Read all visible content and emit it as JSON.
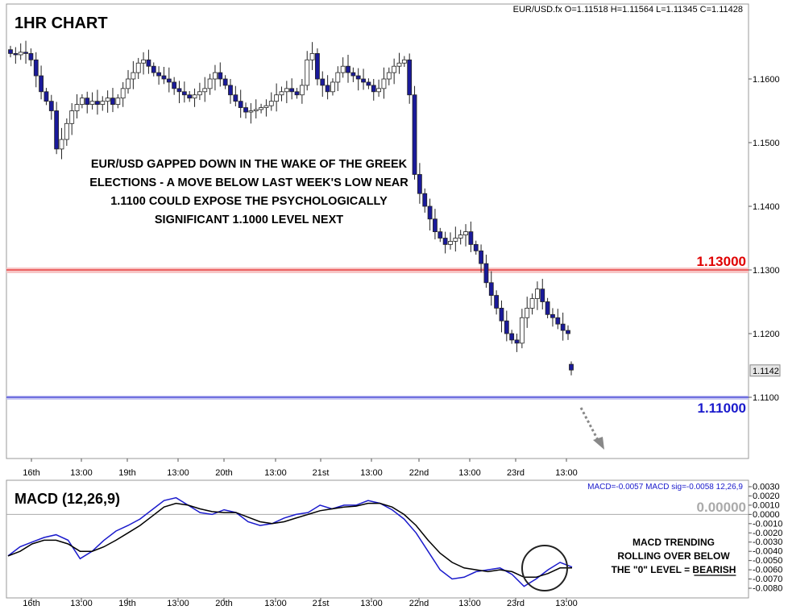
{
  "main": {
    "title": "1HR CHART",
    "ohlc": "EUR/USD.fx O=1.11518 H=1.11564 L=1.11345 C=1.11428",
    "annotation": [
      "EUR/USD GAPPED DOWN IN THE WAKE OF THE GREEK",
      "ELECTIONS - A MOVE BELOW LAST WEEK'S LOW NEAR",
      "1.1100 COULD EXPOSE THE PSYCHOLOGICALLY",
      "SIGNIFICANT 1.1000 LEVEL NEXT"
    ],
    "resistance_label": "1.13000",
    "support_label": "1.11000",
    "last_price_label": "1.1142",
    "colors": {
      "resistance": "#e00000",
      "support": "#1a1acc",
      "bear_candle": "#1a1a9a",
      "bull_candle": "#ffffff"
    }
  },
  "macd": {
    "title": "MACD (12,26,9)",
    "values_line": "MACD=-0.0057 MACD sig=-0.0058  12,26,9",
    "zero_label": "0.00000",
    "annotation": [
      "MACD TRENDING",
      "ROLLING OVER BELOW",
      "THE \"0\" LEVEL = BEARISH"
    ],
    "colors": {
      "macd": "#1a1acc",
      "signal": "#000000"
    }
  },
  "x_axis": {
    "labels": [
      "16th",
      "13:00",
      "19th",
      "13:00",
      "20th",
      "13:00",
      "21st",
      "13:00",
      "22nd",
      "13:00",
      "23rd",
      "13:00"
    ]
  },
  "chart_data": [
    {
      "type": "candlestick",
      "title": "1HR CHART",
      "series_name": "EUR/USD.fx",
      "ylim": [
        1.1,
        1.172
      ],
      "y_ticks": [
        "1.1600",
        "1.1500",
        "1.1400",
        "1.1300",
        "1.1200",
        "1.1100"
      ],
      "horizontal_lines": [
        {
          "value": 1.13,
          "label": "1.13000",
          "color": "#e00000"
        },
        {
          "value": 1.11,
          "label": "1.11000",
          "color": "#1a1acc"
        }
      ],
      "last_price": 1.1142,
      "x_labels": [
        "16th",
        "13:00",
        "19th",
        "13:00",
        "20th",
        "13:00",
        "21st",
        "13:00",
        "22nd",
        "13:00",
        "23rd",
        "13:00"
      ],
      "close_path": [
        1.164,
        1.1638,
        1.1642,
        1.164,
        1.163,
        1.1605,
        1.158,
        1.1565,
        1.155,
        1.149,
        1.1505,
        1.153,
        1.155,
        1.156,
        1.157,
        1.156,
        1.1565,
        1.156,
        1.1565,
        1.157,
        1.156,
        1.157,
        1.1585,
        1.16,
        1.161,
        1.1625,
        1.163,
        1.162,
        1.161,
        1.1605,
        1.16,
        1.1595,
        1.1585,
        1.158,
        1.1575,
        1.157,
        1.1575,
        1.158,
        1.1585,
        1.16,
        1.161,
        1.16,
        1.159,
        1.1575,
        1.1565,
        1.1555,
        1.1548,
        1.155,
        1.1552,
        1.1555,
        1.1558,
        1.1565,
        1.1575,
        1.158,
        1.1585,
        1.158,
        1.1575,
        1.159,
        1.163,
        1.164,
        1.16,
        1.159,
        1.158,
        1.1595,
        1.161,
        1.162,
        1.161,
        1.1605,
        1.16,
        1.1595,
        1.159,
        1.158,
        1.1585,
        1.16,
        1.161,
        1.162,
        1.1625,
        1.163,
        1.1575,
        1.145,
        1.142,
        1.14,
        1.138,
        1.136,
        1.135,
        1.134,
        1.1345,
        1.135,
        1.1355,
        1.136,
        1.134,
        1.133,
        1.131,
        1.128,
        1.126,
        1.124,
        1.122,
        1.12,
        1.119,
        1.1185,
        1.1225,
        1.124,
        1.1255,
        1.127,
        1.125,
        1.123,
        1.1225,
        1.1215,
        1.1205,
        1.12
      ],
      "gap_bar": {
        "open": 1.11518,
        "high": 1.11564,
        "low": 1.11345,
        "close": 1.11428
      }
    },
    {
      "type": "line",
      "title": "MACD (12,26,9)",
      "ylim": [
        -0.008,
        0.003
      ],
      "y_ticks": [
        "0.0030",
        "0.0020",
        "0.0010",
        "0.0000",
        "-0.0010",
        "-0.0020",
        "-0.0030",
        "-0.0040",
        "-0.0050",
        "-0.0060",
        "-0.0070",
        "-0.0080"
      ],
      "series": [
        {
          "name": "MACD",
          "values": [
            -0.0045,
            -0.0035,
            -0.003,
            -0.0025,
            -0.0022,
            -0.0028,
            -0.0048,
            -0.004,
            -0.0028,
            -0.0018,
            -0.0012,
            -0.0005,
            0.0005,
            0.0015,
            0.0018,
            0.001,
            0.0002,
            0.0,
            0.0005,
            0.0002,
            -0.0008,
            -0.0012,
            -0.001,
            -0.0004,
            0.0,
            0.0002,
            0.001,
            0.0006,
            0.001,
            0.001,
            0.0015,
            0.0012,
            0.0005,
            -0.0005,
            -0.002,
            -0.004,
            -0.006,
            -0.007,
            -0.0068,
            -0.0062,
            -0.006,
            -0.0058,
            -0.0065,
            -0.0078,
            -0.007,
            -0.006,
            -0.0052,
            -0.0057
          ]
        },
        {
          "name": "MACD sig",
          "values": [
            -0.0045,
            -0.004,
            -0.0032,
            -0.0028,
            -0.0028,
            -0.0032,
            -0.004,
            -0.004,
            -0.0035,
            -0.0028,
            -0.002,
            -0.0012,
            -0.0002,
            0.0008,
            0.0012,
            0.001,
            0.0006,
            0.0003,
            0.0002,
            0.0002,
            -0.0003,
            -0.0008,
            -0.001,
            -0.0008,
            -0.0004,
            0.0,
            0.0004,
            0.0006,
            0.0008,
            0.0009,
            0.0012,
            0.0012,
            0.0008,
            0.0,
            -0.0012,
            -0.0028,
            -0.0042,
            -0.0052,
            -0.0058,
            -0.006,
            -0.0062,
            -0.006,
            -0.0062,
            -0.0068,
            -0.0068,
            -0.0064,
            -0.0058,
            -0.0058
          ]
        }
      ]
    }
  ]
}
